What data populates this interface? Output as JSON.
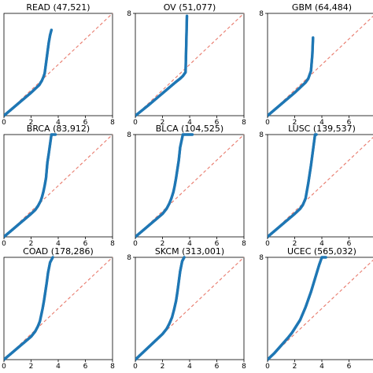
{
  "colors": {
    "points": "#1f77b4",
    "reference": "#e8796b",
    "axes": "#000000"
  },
  "chart_data": [
    {
      "type": "scatter",
      "title": "READ (47,521)",
      "xlim": [
        0,
        8
      ],
      "ylim": [
        0,
        8
      ],
      "xticks": [
        "0",
        "2",
        "4",
        "6",
        "8"
      ],
      "yticks": [],
      "reference_line": [
        [
          0,
          0
        ],
        [
          8,
          8
        ]
      ],
      "series": [
        {
          "x": [
            0,
            0.5,
            1.0,
            1.5,
            2.0,
            2.3,
            2.6,
            2.8,
            2.9,
            3.0,
            3.05,
            3.1,
            3.15,
            3.2,
            3.25,
            3.3,
            3.4,
            3.5
          ],
          "y": [
            0,
            0.45,
            0.9,
            1.35,
            1.8,
            2.1,
            2.4,
            2.75,
            3.0,
            3.3,
            3.7,
            4.1,
            4.5,
            4.9,
            5.3,
            5.7,
            6.3,
            6.7
          ]
        }
      ]
    },
    {
      "type": "scatter",
      "title": "OV (51,077)",
      "xlim": [
        0,
        8
      ],
      "ylim": [
        0,
        8
      ],
      "xticks": [
        "0",
        "2",
        "4",
        "6",
        "8"
      ],
      "yticks": [
        "8"
      ],
      "reference_line": [
        [
          0,
          0
        ],
        [
          8,
          8
        ]
      ],
      "series": [
        {
          "x": [
            0,
            0.5,
            1.0,
            1.5,
            2.0,
            2.5,
            3.0,
            3.3,
            3.5,
            3.7,
            3.8
          ],
          "y": [
            0,
            0.42,
            0.85,
            1.3,
            1.75,
            2.2,
            2.65,
            2.9,
            3.1,
            3.4,
            7.8
          ]
        }
      ]
    },
    {
      "type": "scatter",
      "title": "GBM (64,484)",
      "xlim": [
        0,
        8
      ],
      "ylim": [
        0,
        8
      ],
      "xticks": [
        "0",
        "2",
        "4",
        "6",
        "8"
      ],
      "yticks": [
        "8"
      ],
      "reference_line": [
        [
          0,
          0
        ],
        [
          8,
          8
        ]
      ],
      "series": [
        {
          "x": [
            0,
            0.5,
            1.0,
            1.5,
            2.0,
            2.5,
            2.8,
            3.0,
            3.1,
            3.2,
            3.3,
            3.35
          ],
          "y": [
            0,
            0.45,
            0.9,
            1.35,
            1.8,
            2.3,
            2.6,
            2.9,
            3.2,
            3.5,
            4.8,
            6.1
          ]
        }
      ]
    },
    {
      "type": "scatter",
      "title": "BRCA (83,912)",
      "xlim": [
        0,
        8
      ],
      "ylim": [
        0,
        8
      ],
      "xticks": [
        "0",
        "2",
        "4",
        "6",
        "8"
      ],
      "yticks": [],
      "reference_line": [
        [
          0,
          0
        ],
        [
          8,
          8
        ]
      ],
      "series": [
        {
          "x": [
            0,
            0.5,
            1.0,
            1.5,
            2.0,
            2.3,
            2.5,
            2.7,
            2.8,
            2.9,
            3.0,
            3.1,
            3.15,
            3.2,
            3.3,
            3.5,
            3.8
          ],
          "y": [
            0,
            0.45,
            0.9,
            1.35,
            1.8,
            2.1,
            2.4,
            2.8,
            3.1,
            3.5,
            4.0,
            4.6,
            5.2,
            5.8,
            6.5,
            8.0,
            8.0
          ]
        }
      ]
    },
    {
      "type": "scatter",
      "title": "BLCA (104,525)",
      "xlim": [
        0,
        8
      ],
      "ylim": [
        0,
        8
      ],
      "xticks": [
        "0",
        "2",
        "4",
        "6",
        "8"
      ],
      "yticks": [
        "8"
      ],
      "reference_line": [
        [
          0,
          0
        ],
        [
          8,
          8
        ]
      ],
      "series": [
        {
          "x": [
            0,
            0.5,
            1.0,
            1.5,
            2.0,
            2.3,
            2.5,
            2.65,
            2.8,
            2.9,
            3.0,
            3.1,
            3.2,
            3.3,
            3.5,
            3.8,
            4.2
          ],
          "y": [
            0,
            0.45,
            0.9,
            1.35,
            1.8,
            2.2,
            2.6,
            3.0,
            3.5,
            4.0,
            4.6,
            5.3,
            6.0,
            7.0,
            8.0,
            8.0,
            8.0
          ]
        }
      ]
    },
    {
      "type": "scatter",
      "title": "LUSC (139,537)",
      "xlim": [
        0,
        8
      ],
      "ylim": [
        0,
        8
      ],
      "xticks": [
        "0",
        "2",
        "4",
        "6",
        "8"
      ],
      "yticks": [
        "8"
      ],
      "reference_line": [
        [
          0,
          0
        ],
        [
          8,
          8
        ]
      ],
      "series": [
        {
          "x": [
            0,
            0.5,
            1.0,
            1.5,
            2.0,
            2.4,
            2.6,
            2.8,
            2.9,
            3.0,
            3.1,
            3.2,
            3.3,
            3.4,
            3.5,
            3.6
          ],
          "y": [
            0,
            0.45,
            0.9,
            1.35,
            1.8,
            2.2,
            2.5,
            3.0,
            3.6,
            4.2,
            4.9,
            5.6,
            6.4,
            7.2,
            8.0,
            8.0
          ]
        }
      ]
    },
    {
      "type": "scatter",
      "title": "COAD (178,286)",
      "xlim": [
        0,
        8
      ],
      "ylim": [
        0,
        8
      ],
      "xticks": [
        "0",
        "2",
        "4",
        "6",
        "8"
      ],
      "yticks": [],
      "reference_line": [
        [
          0,
          0
        ],
        [
          8,
          8
        ]
      ],
      "series": [
        {
          "x": [
            0,
            0.5,
            1.0,
            1.5,
            2.0,
            2.3,
            2.5,
            2.65,
            2.75,
            2.85,
            2.95,
            3.05,
            3.15,
            3.25,
            3.4,
            3.6
          ],
          "y": [
            0,
            0.45,
            0.9,
            1.35,
            1.8,
            2.2,
            2.6,
            3.0,
            3.5,
            4.0,
            4.6,
            5.3,
            6.0,
            6.8,
            7.6,
            8.0
          ]
        }
      ]
    },
    {
      "type": "scatter",
      "title": "SKCM (313,001)",
      "xlim": [
        0,
        8
      ],
      "ylim": [
        0,
        8
      ],
      "xticks": [
        "0",
        "2",
        "4",
        "6",
        "8"
      ],
      "yticks": [
        "8"
      ],
      "reference_line": [
        [
          0,
          0
        ],
        [
          8,
          8
        ]
      ],
      "series": [
        {
          "x": [
            0,
            0.5,
            1.0,
            1.5,
            2.0,
            2.3,
            2.5,
            2.7,
            2.85,
            3.0,
            3.1,
            3.2,
            3.3,
            3.45,
            3.6
          ],
          "y": [
            0,
            0.5,
            1.0,
            1.5,
            2.0,
            2.4,
            2.8,
            3.3,
            3.9,
            4.6,
            5.3,
            6.1,
            6.9,
            7.7,
            8.0
          ]
        }
      ]
    },
    {
      "type": "scatter",
      "title": "UCEC (565,032)",
      "xlim": [
        0,
        8
      ],
      "ylim": [
        0,
        8
      ],
      "xticks": [
        "0",
        "2",
        "4",
        "6",
        "8"
      ],
      "yticks": [
        "8"
      ],
      "reference_line": [
        [
          0,
          0
        ],
        [
          8,
          8
        ]
      ],
      "series": [
        {
          "x": [
            0,
            0.5,
            1.0,
            1.5,
            1.8,
            2.1,
            2.4,
            2.6,
            2.8,
            3.0,
            3.2,
            3.4,
            3.6,
            3.8,
            4.0,
            4.3
          ],
          "y": [
            0,
            0.5,
            1.1,
            1.7,
            2.1,
            2.6,
            3.1,
            3.6,
            4.1,
            4.7,
            5.3,
            6.0,
            6.7,
            7.4,
            8.0,
            8.0
          ]
        }
      ]
    }
  ]
}
